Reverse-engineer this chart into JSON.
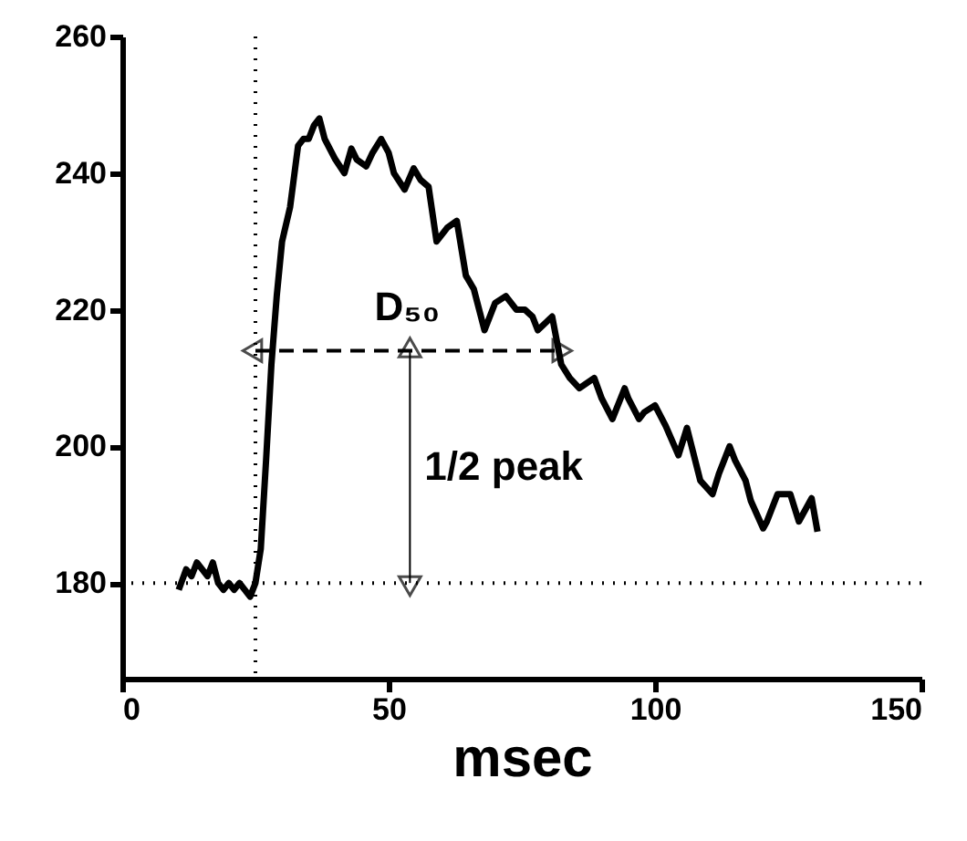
{
  "chart_data": {
    "type": "line",
    "xlabel": "msec",
    "xlim": [
      0,
      150
    ],
    "xticks": [
      0,
      50,
      100,
      150
    ],
    "ylim": [
      166,
      260
    ],
    "yticks": [
      180,
      200,
      220,
      240,
      260
    ],
    "grid": false,
    "series": [
      {
        "color": "#000000",
        "marker": "none",
        "line_style": "solid",
        "x": [
          10.6,
          12,
          13,
          14,
          15,
          16,
          17,
          18,
          19,
          20,
          21,
          22,
          23,
          24,
          25,
          26,
          27,
          28,
          29,
          30,
          31.5,
          33,
          34,
          35,
          36,
          37,
          38,
          40,
          41.7,
          43,
          44,
          45.8,
          47,
          48.6,
          50,
          51,
          53,
          54.7,
          56,
          57.5,
          59,
          61,
          62.8,
          64.5,
          66,
          68,
          70,
          72,
          74,
          75.6,
          77,
          78,
          80.7,
          82.4,
          84,
          85.8,
          88.6,
          90,
          92,
          94.3,
          95,
          97,
          98,
          100,
          102,
          104.4,
          106,
          108.5,
          110.8,
          112,
          114,
          115,
          117,
          118,
          120.3,
          121,
          123,
          125.4,
          127,
          129.4,
          130.5
        ],
        "values": [
          179,
          182,
          181,
          183,
          182,
          181,
          183,
          180,
          179,
          180,
          179,
          180,
          179,
          178,
          180,
          185,
          198,
          212,
          222,
          230,
          235,
          244,
          245,
          245,
          247,
          248,
          245,
          242,
          240,
          243.6,
          242,
          241,
          243,
          245,
          243,
          240,
          237.6,
          240.7,
          239,
          238,
          230,
          232,
          233,
          225,
          223,
          217,
          221,
          222,
          220,
          220,
          219,
          217,
          219,
          212,
          210,
          208.5,
          210,
          207,
          204,
          208.5,
          207,
          204,
          205,
          206,
          203,
          198.7,
          202.7,
          195,
          193,
          196,
          200,
          198,
          195,
          192,
          188,
          189,
          193,
          193,
          189,
          192.4,
          187.5
        ]
      },
      {
        "color": "#000000",
        "marker": "triangle",
        "line_style": "dashed",
        "x": [
          25,
          82
        ],
        "values": [
          214,
          214
        ]
      },
      {
        "color": "#000000",
        "marker": "triangle",
        "line_style": "solid",
        "x": [
          54,
          54
        ],
        "values": [
          180,
          214
        ]
      }
    ],
    "ref_lines": [
      {
        "axis": "y",
        "value": 180,
        "line_style": "dotted",
        "color": "#000000"
      },
      {
        "axis": "x",
        "value": 25,
        "line_style": "dotted",
        "color": "#000000"
      }
    ],
    "annotations": [
      "D₅₀",
      "1/2 peak"
    ]
  }
}
